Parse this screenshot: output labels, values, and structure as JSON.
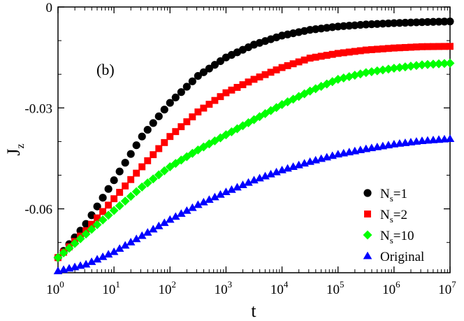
{
  "chart_data": {
    "type": "scatter",
    "panel_label": "(b)",
    "xlabel": "t",
    "ylabel": "J",
    "ylabel_subscript": "z",
    "xscale": "log",
    "xlim": [
      1,
      10000000
    ],
    "ylim": [
      -0.079,
      0
    ],
    "x_ticks": [
      {
        "base": "10",
        "exp": "0"
      },
      {
        "base": "10",
        "exp": "1"
      },
      {
        "base": "10",
        "exp": "2"
      },
      {
        "base": "10",
        "exp": "3"
      },
      {
        "base": "10",
        "exp": "4"
      },
      {
        "base": "10",
        "exp": "5"
      },
      {
        "base": "10",
        "exp": "6"
      },
      {
        "base": "10",
        "exp": "7"
      }
    ],
    "y_ticks": [
      {
        "value": 0,
        "label": "0"
      },
      {
        "value": -0.03,
        "label": "-0.03"
      },
      {
        "value": -0.06,
        "label": "-0.06"
      }
    ],
    "legend_position": "bottom-right",
    "series": [
      {
        "name": "Ns=1",
        "label_main": "N",
        "label_sub": "s",
        "label_rest": "=1",
        "color": "#000000",
        "marker": "circle",
        "log10_t": [
          0,
          0.5,
          1,
          1.5,
          2,
          2.5,
          3,
          3.5,
          4,
          4.5,
          5,
          5.5,
          6,
          6.5,
          7
        ],
        "values": [
          -0.0745,
          -0.0645,
          -0.0515,
          -0.0385,
          -0.0285,
          -0.0205,
          -0.015,
          -0.0112,
          -0.0085,
          -0.0068,
          -0.0058,
          -0.0052,
          -0.0048,
          -0.0045,
          -0.0043
        ]
      },
      {
        "name": "Ns=2",
        "label_main": "N",
        "label_sub": "s",
        "label_rest": "=2",
        "color": "#ff0000",
        "marker": "square",
        "log10_t": [
          0,
          0.5,
          1,
          1.5,
          2,
          2.5,
          3,
          3.5,
          4,
          4.5,
          5,
          5.5,
          6,
          6.5,
          7
        ],
        "values": [
          -0.0745,
          -0.0665,
          -0.057,
          -0.0475,
          -0.0385,
          -0.0312,
          -0.0255,
          -0.0215,
          -0.018,
          -0.0152,
          -0.0138,
          -0.0128,
          -0.0122,
          -0.0118,
          -0.0117
        ]
      },
      {
        "name": "Ns=10",
        "label_main": "N",
        "label_sub": "s",
        "label_rest": "=10",
        "color": "#00ff00",
        "marker": "diamond",
        "log10_t": [
          0,
          0.5,
          1,
          1.5,
          2,
          2.5,
          3,
          3.5,
          4,
          4.5,
          5,
          5.5,
          6,
          6.5,
          7
        ],
        "values": [
          -0.0745,
          -0.0675,
          -0.0605,
          -0.0535,
          -0.0475,
          -0.0425,
          -0.038,
          -0.0335,
          -0.029,
          -0.025,
          -0.0215,
          -0.0195,
          -0.0182,
          -0.0172,
          -0.0167
        ]
      },
      {
        "name": "Original",
        "label_main": "Original",
        "label_sub": "",
        "label_rest": "",
        "color": "#0000ff",
        "marker": "triangle",
        "log10_t": [
          0,
          0.5,
          1,
          1.5,
          2,
          2.5,
          3,
          3.5,
          4,
          4.5,
          5,
          5.5,
          6,
          6.5,
          7
        ],
        "values": [
          -0.0785,
          -0.0765,
          -0.0728,
          -0.068,
          -0.0632,
          -0.0588,
          -0.055,
          -0.0515,
          -0.0485,
          -0.046,
          -0.0438,
          -0.0422,
          -0.0408,
          -0.0398,
          -0.0392
        ]
      }
    ]
  }
}
